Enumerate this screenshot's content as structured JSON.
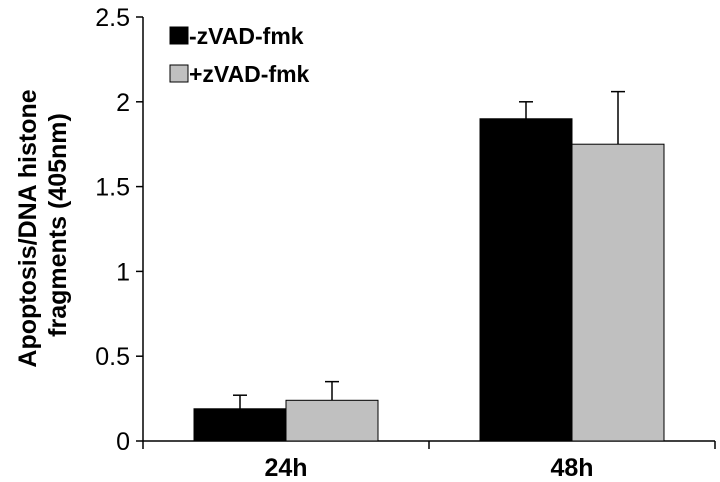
{
  "chart_data": {
    "type": "bar",
    "title": "",
    "ylabel_lines": [
      "Apoptosis/DNA histone",
      "fragments (405nm)"
    ],
    "xlabel": "",
    "categories": [
      "24h",
      "48h"
    ],
    "ylim": [
      0,
      2.5
    ],
    "yticks": [
      0,
      0.5,
      1,
      1.5,
      2,
      2.5
    ],
    "ytick_labels": [
      "0",
      "0.5",
      "1",
      "1.5",
      "2",
      "2.5"
    ],
    "grid": false,
    "legend_position": "top-left",
    "series": [
      {
        "name": "-zVAD-fmk",
        "color": "#000000",
        "values": [
          0.19,
          1.9
        ],
        "errors": [
          0.08,
          0.1
        ]
      },
      {
        "name": "+zVAD-fmk",
        "color": "#c0c0c0",
        "values": [
          0.24,
          1.75
        ],
        "errors": [
          0.11,
          0.31
        ]
      }
    ]
  }
}
